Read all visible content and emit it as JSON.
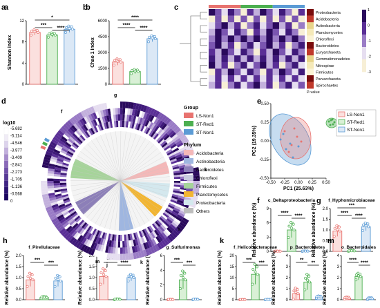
{
  "colors": {
    "LS": "#e8736f",
    "ST_Red": "#4caf50",
    "ST_Non": "#5b9bd5",
    "LS_fill": "#fbe0de",
    "Red_fill": "#d9f0d6",
    "Non_fill": "#dbe8f6"
  },
  "panels": {
    "a": "a",
    "b": "b",
    "c": "c",
    "d": "d",
    "e": "e",
    "f": "f",
    "g": "g",
    "h": "h",
    "i": "i",
    "j": "j",
    "k": "k",
    "m": "m"
  },
  "bars": [
    {
      "panel": "a",
      "ylabel": "Shannon index",
      "yticks": [
        "0",
        "4",
        "8",
        "12"
      ],
      "ymax": 12,
      "means": [
        9.8,
        9.3,
        10.4
      ],
      "errs": [
        0.5,
        0.4,
        0.6
      ],
      "sig": [
        {
          "a": 0,
          "b": 1,
          "t": "***"
        },
        {
          "a": 1,
          "b": 2,
          "t": "****"
        },
        {
          "a": 0,
          "b": 2,
          "t": "*"
        }
      ]
    },
    {
      "panel": "b",
      "ylabel": "Chao 1 Index",
      "yticks": [
        "0",
        "1500",
        "3000",
        "4500",
        "6000"
      ],
      "ymax": 6000,
      "means": [
        2100,
        1200,
        4300
      ],
      "errs": [
        300,
        200,
        280
      ],
      "sig": [
        {
          "a": 0,
          "b": 1,
          "t": "****"
        },
        {
          "a": 1,
          "b": 2,
          "t": "****"
        },
        {
          "a": 0,
          "b": 2,
          "t": "****"
        }
      ]
    },
    {
      "panel": "f",
      "title": "c_Deltaproteobacteria",
      "ylabel": "Relative abundance (%)",
      "yticks": [
        "0",
        "3",
        "6",
        "9"
      ],
      "ymax": 9,
      "means": [
        0.03,
        4.5,
        0.05
      ],
      "errs": [
        0.05,
        1.6,
        0.05
      ],
      "sig": [
        {
          "a": 0,
          "b": 1,
          "t": "****"
        },
        {
          "a": 1,
          "b": 2,
          "t": "****"
        }
      ]
    },
    {
      "panel": "g",
      "title": "f_Hyphomicrobiaceae",
      "ylabel": "Relative abundance (%)",
      "yticks": [
        "0.0",
        "0.5",
        "1.0",
        "1.5",
        "2.0"
      ],
      "ymax": 2,
      "means": [
        0.95,
        0.02,
        1.15
      ],
      "errs": [
        0.25,
        0.02,
        0.18
      ],
      "sig": [
        {
          "a": 0,
          "b": 1,
          "t": "****"
        },
        {
          "a": 1,
          "b": 2,
          "t": "****"
        },
        {
          "a": 0,
          "b": 2,
          "t": "***"
        }
      ]
    },
    {
      "panel": "h",
      "title": "f_Pirellulaceae",
      "ylabel": "Relative abundance (%)",
      "yticks": [
        "0.0",
        "0.5",
        "1.0",
        "1.5",
        "2.0"
      ],
      "ymax": 2,
      "means": [
        0.9,
        0.1,
        0.85
      ],
      "errs": [
        0.3,
        0.05,
        0.25
      ],
      "sig": [
        {
          "a": 0,
          "b": 1,
          "t": "***"
        },
        {
          "a": 1,
          "b": 2,
          "t": "***"
        }
      ]
    },
    {
      "panel": "i",
      "title": "p_Gemmatimonadetes",
      "ylabel": "Relative abundance (%)",
      "yticks": [
        "0.0",
        "0.5",
        "1.0",
        "1.5",
        "2.0"
      ],
      "ymax": 2,
      "means": [
        1.05,
        0.02,
        1.0
      ],
      "errs": [
        0.35,
        0.02,
        0.15
      ],
      "sig": [
        {
          "a": 0,
          "b": 1,
          "t": "****"
        },
        {
          "a": 1,
          "b": 2,
          "t": "****"
        }
      ]
    },
    {
      "panel": "j",
      "title": "g_Sulfurimonas",
      "ylabel": "Relative abundance (%)",
      "yticks": [
        "0",
        "2",
        "4",
        "6"
      ],
      "ymax": 6,
      "means": [
        0.02,
        2.7,
        0.05
      ],
      "errs": [
        0.05,
        1.2,
        0.05
      ],
      "sig": [
        {
          "a": 0,
          "b": 1,
          "t": "***"
        },
        {
          "a": 1,
          "b": 2,
          "t": "***"
        }
      ]
    },
    {
      "panel": "k",
      "title": "f_Helicobacteraceae",
      "ylabel": "Relative abundance (%)",
      "yticks": [
        "0",
        "5",
        "10",
        "15",
        "20"
      ],
      "ymax": 20,
      "means": [
        0.05,
        11.5,
        0.1
      ],
      "errs": [
        0.1,
        4.5,
        0.1
      ],
      "sig": [
        {
          "a": 0,
          "b": 1,
          "t": "***"
        },
        {
          "a": 1,
          "b": 2,
          "t": "***"
        }
      ]
    },
    {
      "panel": "",
      "title": "p_Bacteroidetes",
      "ylabel": "Relative abundance (%)",
      "yticks": [
        "0",
        "1",
        "2",
        "3",
        "4"
      ],
      "ymax": 4,
      "means": [
        0.55,
        1.6,
        0.25
      ],
      "errs": [
        0.5,
        0.7,
        0.1
      ],
      "sig": [
        {
          "a": 0,
          "b": 1,
          "t": "**"
        },
        {
          "a": 1,
          "b": 2,
          "t": "**"
        }
      ]
    },
    {
      "panel": "m",
      "title": "o_Bacteroidales",
      "ylabel": "Relative abundance (%)",
      "yticks": [
        "0",
        "1",
        "2",
        "3",
        "4"
      ],
      "ymax": 4,
      "means": [
        0.15,
        2.1,
        0.1
      ],
      "errs": [
        0.1,
        0.3,
        0.1
      ],
      "sig": [
        {
          "a": 0,
          "b": 1,
          "t": "****"
        },
        {
          "a": 1,
          "b": 2,
          "t": "****"
        }
      ]
    }
  ],
  "heatmap": {
    "rows": [
      "Proteobacteria",
      "Acidobacteria",
      "Actinobacteria",
      "Planctomycetes",
      "Chloroflexi",
      "Bacteroidetes",
      "Euryarchaeota",
      "Gemmatimonadetes",
      "Nitrospirae",
      "Firmicutes",
      "Parvarchaeota",
      "Spirochaetes"
    ],
    "legend_ticks": [
      "1",
      "0",
      "-1",
      "-2",
      "-3"
    ],
    "legend_title": "P-value"
  },
  "circle": {
    "colorbar_title": "log10",
    "colorbar_ticks": [
      "-5.682",
      "-5.114",
      "-4.546",
      "-3.977",
      "-3.409",
      "-2.841",
      "-2.273",
      "-1.705",
      "-1.136",
      "-0.568",
      "0"
    ],
    "letters": [
      "g",
      "f",
      "h",
      "i",
      "k",
      "m",
      "j"
    ],
    "group_title": "Group",
    "groups": [
      "LS-Non1",
      "ST-Red1",
      "ST-Non1"
    ],
    "phylum_title": "Phylum",
    "phyla": [
      "Acidobacteria",
      "Actinobacteria",
      "Bacteroidetes",
      "Chloroflexi",
      "Firmicutes",
      "Planctomycetes",
      "Proteobacteria",
      "Others"
    ],
    "phylum_colors": [
      "#f4b8b8",
      "#9fb6e0",
      "#8c7fb8",
      "#c9cce0",
      "#a6d49a",
      "#f2b531",
      "#d4e8ee",
      "#bdbdbd"
    ]
  },
  "pca": {
    "xlabel": "PC1 (25.63%)",
    "ylabel": "PC2 (19.35%)",
    "xticks": [
      "-0.50",
      "-0.25",
      "0.00",
      "0.25",
      "0.50"
    ],
    "yticks": [
      "-0.50",
      "-0.25",
      "0.00",
      "0.25",
      "0.50"
    ],
    "legend": [
      "LS-Non1",
      "ST-Red1",
      "ST-Non1"
    ]
  }
}
